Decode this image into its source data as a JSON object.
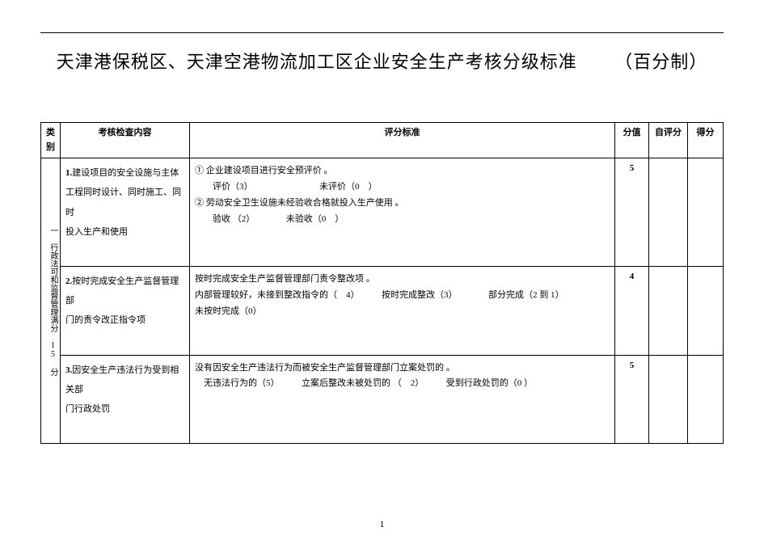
{
  "title_main": "天津港保税区、天津空港物流加工区企业安全生产考核分级标准",
  "title_sub": "（百分制）",
  "page_number": "1",
  "columns": {
    "category": "类 别",
    "item": "考核检查内容",
    "criteria": "评分标准",
    "score": "分值",
    "self": "自评分",
    "got": "得分"
  },
  "category_label": "一 行政法可和监督管理满分 15 分",
  "rows": [
    {
      "idx": "1.",
      "item": "建设项目的安全设施与主体\n工程同时设计、同时施工、同时\n投入生产和使用",
      "criteria": "① 企业建设项目进行安全预评价 。\n　　评价（3）　　　　　　　　未评价（0　）\n② 劳动安全卫生设施未经验收合格就投入生产使用 。\n　　验收 （2）　　　　未验收（0　）",
      "score": "5"
    },
    {
      "idx": "2.",
      "item": "按时完成安全生产监督管理　部\n门的责令改正指令项",
      "criteria": "按时完成安全生产监督管理部门责令整改项 。\n内部管理较好，未接到整改指令的（　4）　　　按时完成整改（3）　　　　部分完成（2 到 1）\n未按时完成（0）",
      "score": "4"
    },
    {
      "idx": "3.",
      "item": "因安全生产违法行为受到相　关部\n门行政处罚",
      "criteria": "没有因安全生产违法行为而被安全生产监督管理部门立案处罚的 。\n　无违法行为的（5）　　　立案后整改未被处罚的 （　2）　　　受到行政处罚的（0 ）",
      "score": "5"
    }
  ]
}
